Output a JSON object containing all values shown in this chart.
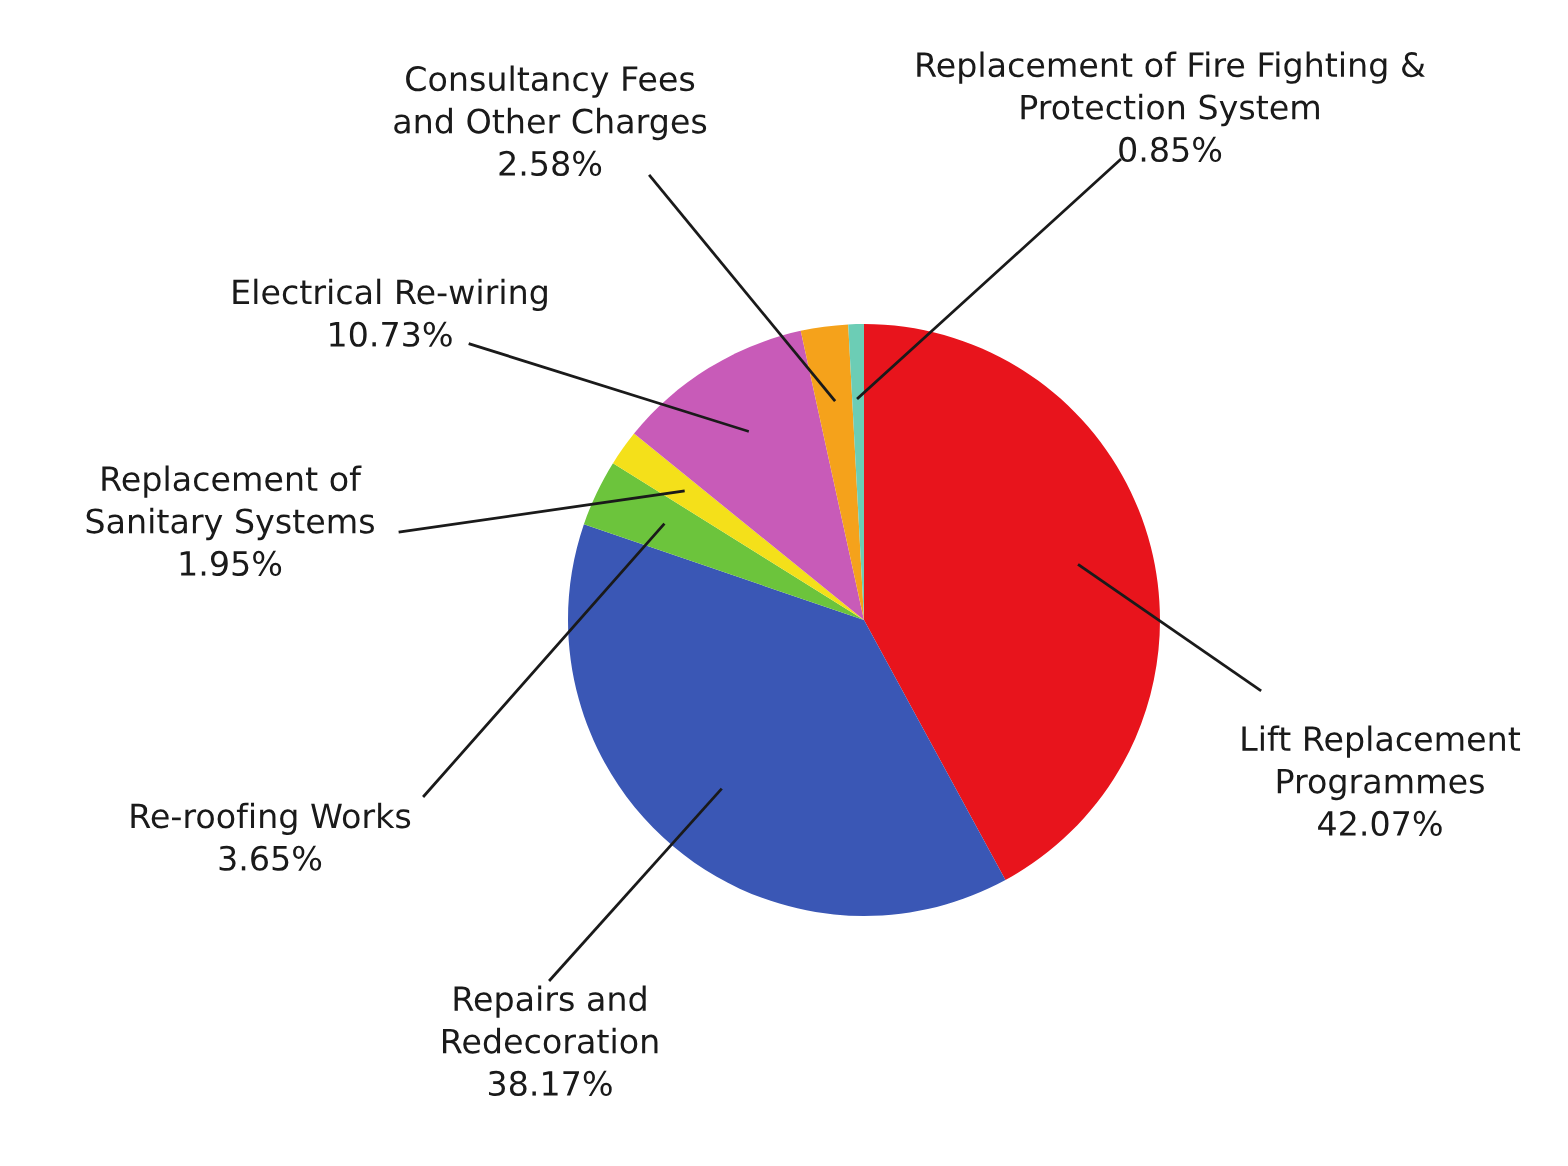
{
  "chart_data": {
    "type": "pie",
    "categories": [
      "Lift Replacement\nProgrammes",
      "Repairs and\nRedecoration",
      "Re-roofing Works",
      "Replacement of\nSanitary Systems",
      "Electrical Re-wiring",
      "Consultancy Fees\nand Other Charges",
      "Replacement of Fire Fighting &\nProtection System"
    ],
    "values": [
      42.07,
      38.17,
      3.65,
      1.95,
      10.73,
      2.58,
      0.85
    ],
    "value_labels": [
      "42.07%",
      "38.17%",
      "3.65%",
      "1.95%",
      "10.73%",
      "2.58%",
      "0.85%"
    ],
    "colors": [
      "#e8141c",
      "#3a57b5",
      "#6cc43c",
      "#f4e01a",
      "#c85bb8",
      "#f5a21b",
      "#6ccdb5"
    ],
    "legend": false
  }
}
